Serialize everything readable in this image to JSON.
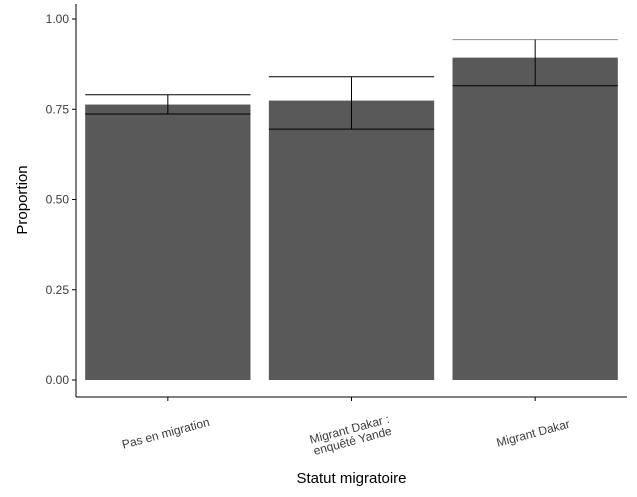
{
  "chart_data": {
    "type": "bar",
    "xlabel": "Statut migratoire",
    "ylabel": "Proportion",
    "categories": [
      [
        "Pas en migration"
      ],
      [
        "Migrant Dakar :",
        "enquêté Yande"
      ],
      [
        "Migrant Dakar"
      ]
    ],
    "values": [
      0.763,
      0.774,
      0.893
    ],
    "error_low": [
      0.737,
      0.695,
      0.815
    ],
    "error_high": [
      0.79,
      0.84,
      0.943
    ],
    "ylim": [
      0,
      1.05
    ],
    "yticks": [
      0.0,
      0.25,
      0.5,
      0.75,
      1.0
    ],
    "ytick_labels": [
      "0.00",
      "0.25",
      "0.50",
      "0.75",
      "1.00"
    ],
    "grid": false,
    "bar_color": "#595959",
    "errorbar_colors": [
      "#000000",
      "#000000",
      "#8c8c8c"
    ]
  }
}
